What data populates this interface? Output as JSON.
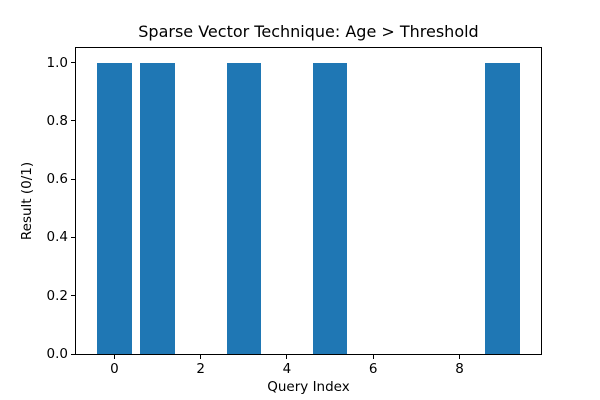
{
  "figure": {
    "background_color": "#ffffff",
    "axis_color": "#000000",
    "text_color": "#000000"
  },
  "chart_data": {
    "type": "bar",
    "title": "Sparse Vector Technique: Age > Threshold",
    "xlabel": "Query Index",
    "ylabel": "Result (0/1)",
    "categories": [
      0,
      1,
      2,
      3,
      4,
      5,
      6,
      7,
      8,
      9
    ],
    "values": [
      1,
      1,
      0,
      1,
      0,
      1,
      0,
      0,
      0,
      1
    ],
    "bar_color": "#1f77b4",
    "bar_width": 0.8,
    "xlim": [
      -0.89,
      9.89
    ],
    "ylim": [
      0,
      1.05
    ],
    "xticks": [
      0,
      2,
      4,
      6,
      8
    ],
    "xtick_labels": [
      "0",
      "2",
      "4",
      "6",
      "8"
    ],
    "yticks": [
      0.0,
      0.2,
      0.4,
      0.6,
      0.8,
      1.0
    ],
    "ytick_labels": [
      "0.0",
      "0.2",
      "0.4",
      "0.6",
      "0.8",
      "1.0"
    ],
    "grid": false,
    "legend": "none"
  }
}
